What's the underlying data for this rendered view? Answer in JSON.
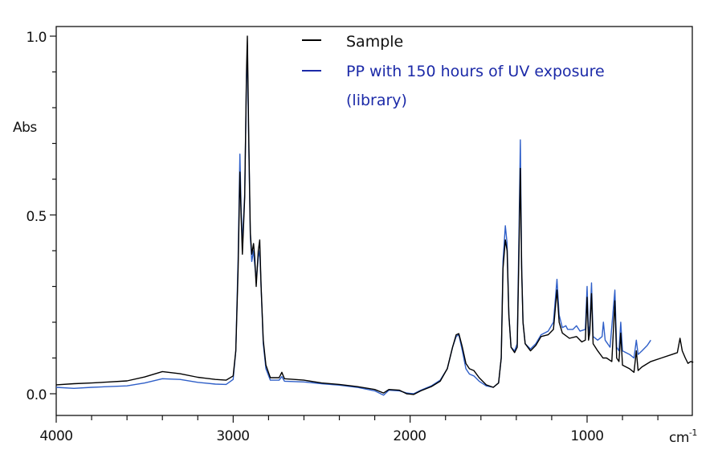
{
  "chart_data": {
    "type": "line",
    "title": "",
    "xlabel": "cm",
    "xlabel_superscript": "-1",
    "ylabel": "Abs",
    "xlim": [
      4000,
      400
    ],
    "ylim": [
      -0.06,
      1.03
    ],
    "x_reversed": true,
    "grid": false,
    "legend_placement": "top-center",
    "x_ticks": [
      4000,
      3000,
      2000,
      1000
    ],
    "x_tick_labels": [
      "4000",
      "3000",
      "2000",
      "1000"
    ],
    "x_minor_step": 200,
    "y_ticks": [
      0.0,
      0.5,
      1.0
    ],
    "y_tick_labels": [
      "0.0",
      "0.5",
      "1.0"
    ],
    "y_minor_step": 0.1,
    "series": [
      {
        "name": "Sample",
        "color": "#000000",
        "legend_color": "#000000",
        "points": [
          [
            4000,
            0.025
          ],
          [
            3900,
            0.028
          ],
          [
            3800,
            0.03
          ],
          [
            3700,
            0.033
          ],
          [
            3600,
            0.036
          ],
          [
            3500,
            0.047
          ],
          [
            3400,
            0.062
          ],
          [
            3300,
            0.056
          ],
          [
            3200,
            0.046
          ],
          [
            3100,
            0.04
          ],
          [
            3040,
            0.038
          ],
          [
            3000,
            0.05
          ],
          [
            2985,
            0.12
          ],
          [
            2972,
            0.35
          ],
          [
            2962,
            0.62
          ],
          [
            2955,
            0.5
          ],
          [
            2948,
            0.39
          ],
          [
            2935,
            0.55
          ],
          [
            2925,
            0.9
          ],
          [
            2920,
            1.0
          ],
          [
            2912,
            0.72
          ],
          [
            2903,
            0.45
          ],
          [
            2895,
            0.39
          ],
          [
            2885,
            0.42
          ],
          [
            2878,
            0.38
          ],
          [
            2870,
            0.3
          ],
          [
            2858,
            0.4
          ],
          [
            2850,
            0.43
          ],
          [
            2842,
            0.3
          ],
          [
            2830,
            0.15
          ],
          [
            2815,
            0.08
          ],
          [
            2790,
            0.045
          ],
          [
            2740,
            0.045
          ],
          [
            2725,
            0.06
          ],
          [
            2710,
            0.042
          ],
          [
            2600,
            0.038
          ],
          [
            2500,
            0.03
          ],
          [
            2400,
            0.026
          ],
          [
            2300,
            0.02
          ],
          [
            2200,
            0.012
          ],
          [
            2150,
            0.002
          ],
          [
            2120,
            0.012
          ],
          [
            2060,
            0.01
          ],
          [
            2020,
            0.0
          ],
          [
            1980,
            -0.002
          ],
          [
            1940,
            0.008
          ],
          [
            1880,
            0.02
          ],
          [
            1830,
            0.035
          ],
          [
            1790,
            0.07
          ],
          [
            1760,
            0.13
          ],
          [
            1740,
            0.165
          ],
          [
            1725,
            0.168
          ],
          [
            1705,
            0.13
          ],
          [
            1685,
            0.085
          ],
          [
            1665,
            0.07
          ],
          [
            1640,
            0.065
          ],
          [
            1610,
            0.045
          ],
          [
            1570,
            0.025
          ],
          [
            1530,
            0.018
          ],
          [
            1500,
            0.03
          ],
          [
            1485,
            0.1
          ],
          [
            1475,
            0.35
          ],
          [
            1462,
            0.43
          ],
          [
            1452,
            0.4
          ],
          [
            1442,
            0.22
          ],
          [
            1430,
            0.13
          ],
          [
            1410,
            0.115
          ],
          [
            1395,
            0.13
          ],
          [
            1385,
            0.4
          ],
          [
            1377,
            0.63
          ],
          [
            1370,
            0.35
          ],
          [
            1362,
            0.2
          ],
          [
            1350,
            0.14
          ],
          [
            1320,
            0.12
          ],
          [
            1290,
            0.135
          ],
          [
            1260,
            0.16
          ],
          [
            1220,
            0.165
          ],
          [
            1190,
            0.18
          ],
          [
            1170,
            0.29
          ],
          [
            1158,
            0.2
          ],
          [
            1140,
            0.17
          ],
          [
            1100,
            0.155
          ],
          [
            1060,
            0.16
          ],
          [
            1030,
            0.145
          ],
          [
            1010,
            0.15
          ],
          [
            1000,
            0.27
          ],
          [
            992,
            0.15
          ],
          [
            985,
            0.17
          ],
          [
            975,
            0.28
          ],
          [
            966,
            0.14
          ],
          [
            940,
            0.12
          ],
          [
            910,
            0.1
          ],
          [
            890,
            0.1
          ],
          [
            860,
            0.09
          ],
          [
            843,
            0.26
          ],
          [
            833,
            0.1
          ],
          [
            820,
            0.09
          ],
          [
            810,
            0.17
          ],
          [
            800,
            0.08
          ],
          [
            760,
            0.07
          ],
          [
            735,
            0.06
          ],
          [
            722,
            0.12
          ],
          [
            712,
            0.065
          ],
          [
            690,
            0.075
          ],
          [
            640,
            0.09
          ],
          [
            580,
            0.1
          ],
          [
            520,
            0.11
          ],
          [
            490,
            0.115
          ],
          [
            475,
            0.155
          ],
          [
            462,
            0.12
          ],
          [
            445,
            0.1
          ],
          [
            430,
            0.085
          ],
          [
            415,
            0.09
          ],
          [
            400,
            0.088
          ]
        ]
      },
      {
        "name": "PP with 150 hours of UV exposure (library)",
        "legend_lines": [
          "PP with 150 hours of UV exposure",
          "(library)"
        ],
        "color": "#2f5fc8",
        "legend_color": "#1c2aa8",
        "points": [
          [
            4000,
            0.018
          ],
          [
            3900,
            0.015
          ],
          [
            3800,
            0.018
          ],
          [
            3700,
            0.02
          ],
          [
            3600,
            0.022
          ],
          [
            3500,
            0.03
          ],
          [
            3400,
            0.042
          ],
          [
            3300,
            0.04
          ],
          [
            3200,
            0.032
          ],
          [
            3100,
            0.027
          ],
          [
            3040,
            0.026
          ],
          [
            3000,
            0.04
          ],
          [
            2985,
            0.12
          ],
          [
            2972,
            0.38
          ],
          [
            2962,
            0.67
          ],
          [
            2955,
            0.52
          ],
          [
            2948,
            0.42
          ],
          [
            2935,
            0.56
          ],
          [
            2925,
            0.88
          ],
          [
            2920,
            0.95
          ],
          [
            2912,
            0.7
          ],
          [
            2903,
            0.44
          ],
          [
            2895,
            0.37
          ],
          [
            2885,
            0.4
          ],
          [
            2878,
            0.36
          ],
          [
            2870,
            0.32
          ],
          [
            2858,
            0.38
          ],
          [
            2850,
            0.4
          ],
          [
            2842,
            0.3
          ],
          [
            2830,
            0.14
          ],
          [
            2815,
            0.07
          ],
          [
            2790,
            0.038
          ],
          [
            2740,
            0.038
          ],
          [
            2725,
            0.048
          ],
          [
            2710,
            0.035
          ],
          [
            2600,
            0.033
          ],
          [
            2500,
            0.028
          ],
          [
            2400,
            0.024
          ],
          [
            2300,
            0.018
          ],
          [
            2200,
            0.008
          ],
          [
            2150,
            -0.004
          ],
          [
            2120,
            0.01
          ],
          [
            2060,
            0.008
          ],
          [
            2020,
            0.002
          ],
          [
            1980,
            0.0
          ],
          [
            1940,
            0.01
          ],
          [
            1880,
            0.022
          ],
          [
            1830,
            0.038
          ],
          [
            1790,
            0.07
          ],
          [
            1760,
            0.13
          ],
          [
            1740,
            0.16
          ],
          [
            1725,
            0.165
          ],
          [
            1705,
            0.12
          ],
          [
            1685,
            0.07
          ],
          [
            1665,
            0.055
          ],
          [
            1640,
            0.05
          ],
          [
            1610,
            0.035
          ],
          [
            1570,
            0.022
          ],
          [
            1530,
            0.018
          ],
          [
            1500,
            0.03
          ],
          [
            1485,
            0.1
          ],
          [
            1475,
            0.37
          ],
          [
            1462,
            0.47
          ],
          [
            1452,
            0.42
          ],
          [
            1442,
            0.22
          ],
          [
            1430,
            0.13
          ],
          [
            1410,
            0.12
          ],
          [
            1395,
            0.14
          ],
          [
            1385,
            0.45
          ],
          [
            1377,
            0.71
          ],
          [
            1370,
            0.36
          ],
          [
            1362,
            0.2
          ],
          [
            1350,
            0.14
          ],
          [
            1320,
            0.125
          ],
          [
            1290,
            0.14
          ],
          [
            1260,
            0.165
          ],
          [
            1220,
            0.175
          ],
          [
            1190,
            0.2
          ],
          [
            1170,
            0.32
          ],
          [
            1158,
            0.22
          ],
          [
            1140,
            0.185
          ],
          [
            1120,
            0.19
          ],
          [
            1110,
            0.18
          ],
          [
            1080,
            0.18
          ],
          [
            1060,
            0.19
          ],
          [
            1040,
            0.175
          ],
          [
            1010,
            0.18
          ],
          [
            1000,
            0.3
          ],
          [
            992,
            0.17
          ],
          [
            985,
            0.19
          ],
          [
            975,
            0.31
          ],
          [
            966,
            0.16
          ],
          [
            940,
            0.15
          ],
          [
            915,
            0.16
          ],
          [
            908,
            0.2
          ],
          [
            898,
            0.15
          ],
          [
            870,
            0.13
          ],
          [
            843,
            0.29
          ],
          [
            833,
            0.13
          ],
          [
            820,
            0.12
          ],
          [
            810,
            0.2
          ],
          [
            800,
            0.12
          ],
          [
            760,
            0.11
          ],
          [
            735,
            0.1
          ],
          [
            722,
            0.15
          ],
          [
            712,
            0.11
          ],
          [
            690,
            0.12
          ],
          [
            660,
            0.135
          ],
          [
            640,
            0.15
          ]
        ]
      }
    ]
  }
}
